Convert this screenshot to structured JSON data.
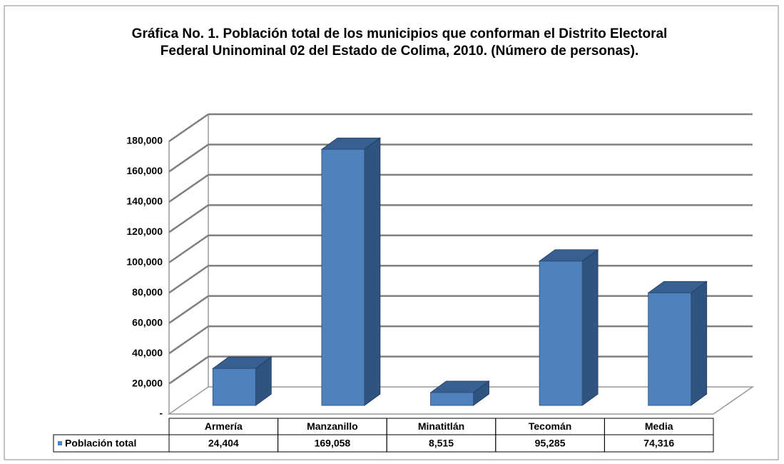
{
  "chart_data": {
    "type": "bar3d",
    "title": "Gráfica No. 1. Población total de los municipios que conforman el Distrito Electoral Federal Uninominal 02 del Estado de Colima, 2010. (Número de personas).",
    "categories": [
      "Armería",
      "Manzanillo",
      "Minatitlán",
      "Tecomán",
      "Media"
    ],
    "series": [
      {
        "name": "Población total",
        "color": "#4f81bd",
        "values": [
          24404,
          169058,
          8515,
          95285,
          74316
        ],
        "value_labels": [
          "24,404",
          "169,058",
          "8,515",
          "95,285",
          "74,316"
        ]
      }
    ],
    "ylim": [
      0,
      180000
    ],
    "yticks": [
      {
        "value": 0,
        "label": "-"
      },
      {
        "value": 20000,
        "label": "20,000"
      },
      {
        "value": 40000,
        "label": "40,000"
      },
      {
        "value": 60000,
        "label": "60,000"
      },
      {
        "value": 80000,
        "label": "80,000"
      },
      {
        "value": 100000,
        "label": "100,000"
      },
      {
        "value": 120000,
        "label": "120,000"
      },
      {
        "value": 140000,
        "label": "140,000"
      },
      {
        "value": 160000,
        "label": "160,000"
      },
      {
        "value": 180000,
        "label": "180,000"
      }
    ],
    "grid": true
  }
}
